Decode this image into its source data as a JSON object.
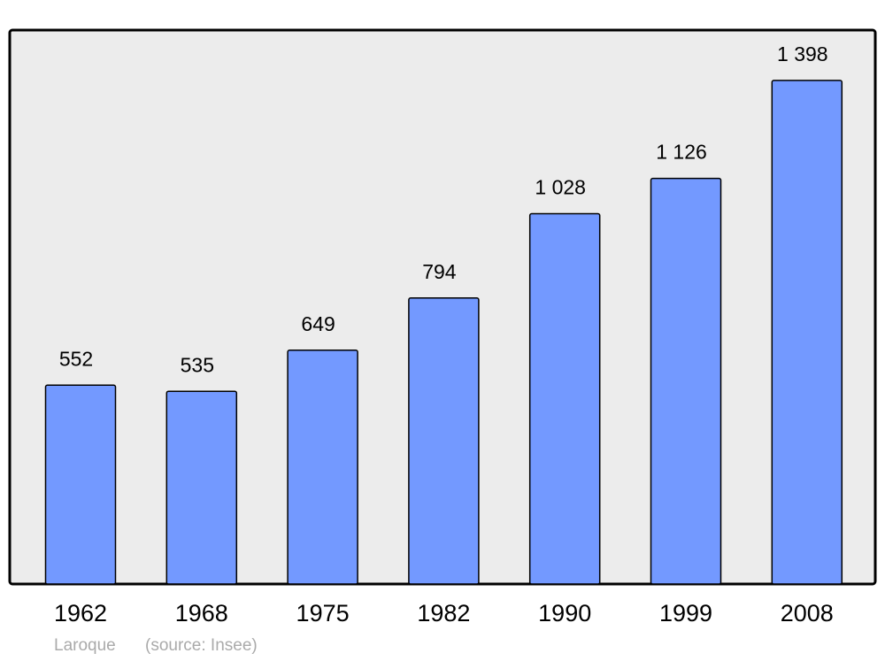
{
  "chart_data": {
    "type": "bar",
    "title": "Laroque",
    "source": "(source: Insee)",
    "categories": [
      "1962",
      "1968",
      "1975",
      "1982",
      "1990",
      "1999",
      "2008"
    ],
    "values": [
      552,
      535,
      649,
      794,
      1028,
      1126,
      1398
    ],
    "value_labels": [
      "552",
      "535",
      "649",
      "794",
      "1 028",
      "1 126",
      "1 398"
    ],
    "color": "#7399ff"
  }
}
